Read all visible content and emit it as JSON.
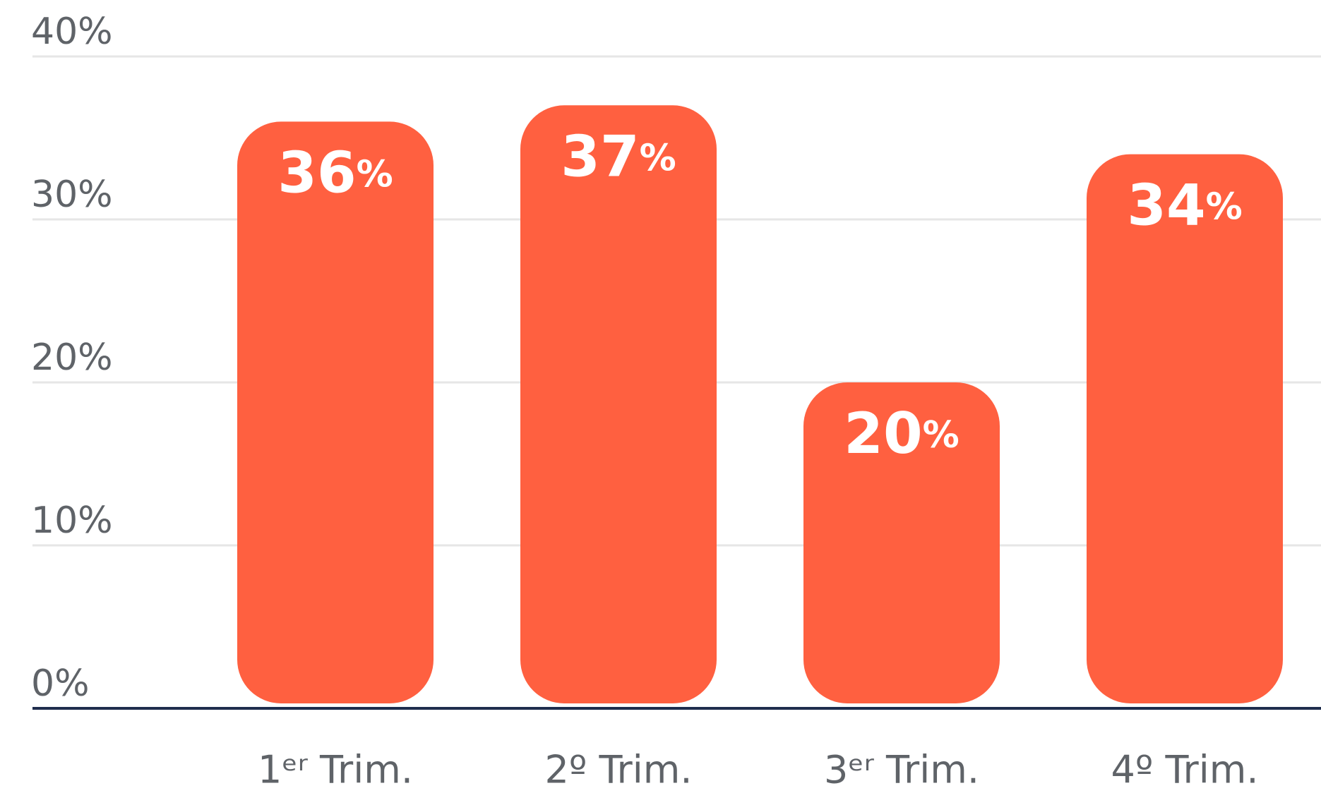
{
  "chart_data": {
    "type": "bar",
    "categories": [
      "1ᵉʳ Trim.",
      "2º Trim.",
      "3ᵉʳ Trim.",
      "4º Trim."
    ],
    "values": [
      36,
      37,
      20,
      34
    ],
    "value_labels": [
      "36%",
      "37%",
      "20%",
      "34%"
    ],
    "color": "#ff6040",
    "ylim": [
      0,
      40
    ],
    "yticks": [
      {
        "value": 0,
        "label": "0%"
      },
      {
        "value": 10,
        "label": "10%"
      },
      {
        "value": 20,
        "label": "20%"
      },
      {
        "value": 30,
        "label": "30%"
      },
      {
        "value": 40,
        "label": "40%"
      }
    ],
    "grid": true
  }
}
